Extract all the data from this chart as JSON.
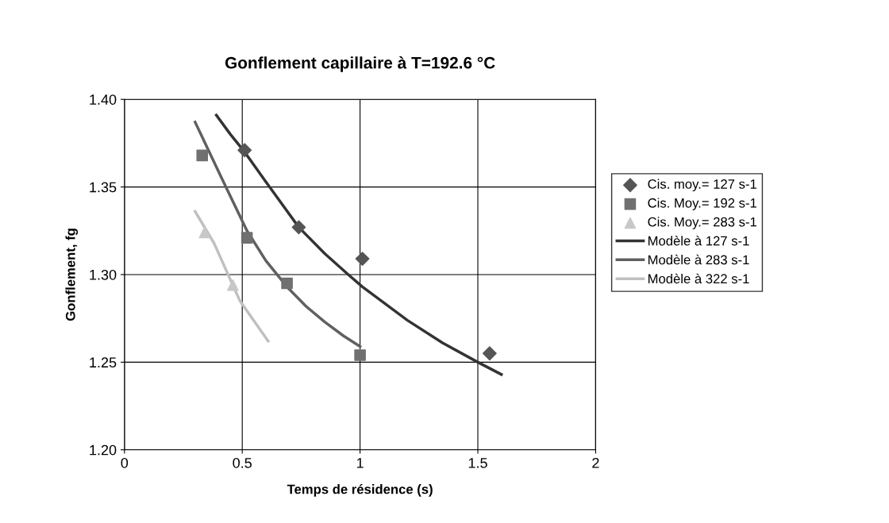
{
  "chart_data": {
    "type": "scatter",
    "title": "Gonflement capillaire à T=192.6 °C",
    "xlabel": "Temps de résidence (s)",
    "ylabel": "Gonflement, fg",
    "xlim": [
      0,
      2
    ],
    "xticks": [
      0,
      0.5,
      1,
      1.5,
      2
    ],
    "ylim": [
      1.2,
      1.4
    ],
    "yticks": [
      {
        "value": 1.2,
        "label": "1.20"
      },
      {
        "value": 1.25,
        "label": "1.25"
      },
      {
        "value": 1.3,
        "label": "1.30"
      },
      {
        "value": 1.35,
        "label": "1.35"
      },
      {
        "value": 1.4,
        "label": "1.40"
      }
    ],
    "grid": true,
    "legend": "right",
    "series": [
      {
        "name": "Cis. moy.= 127 s-1",
        "marker": "diamond",
        "color": "#555555",
        "x": [
          0.51,
          0.74,
          1.01,
          1.55
        ],
        "values": [
          1.371,
          1.327,
          1.309,
          1.255
        ]
      },
      {
        "name": "Cis. Moy.= 192 s-1",
        "marker": "square",
        "color": "#707070",
        "x": [
          0.33,
          0.52,
          0.69,
          1.0
        ],
        "values": [
          1.368,
          1.321,
          1.295,
          1.254
        ]
      },
      {
        "name": "Cis. Moy.= 283 s-1",
        "marker": "triangle",
        "color": "#c8c8c8",
        "x": [
          0.34,
          0.46
        ],
        "values": [
          1.324,
          1.294
        ]
      },
      {
        "name": "Modèle à 127 s-1",
        "type": "line",
        "color": "#333333",
        "x": [
          0.39,
          0.45,
          0.51,
          0.6,
          0.74,
          0.85,
          0.95,
          1.01,
          1.2,
          1.35,
          1.5,
          1.6
        ],
        "values": [
          1.391,
          1.38,
          1.37,
          1.353,
          1.327,
          1.312,
          1.3,
          1.293,
          1.274,
          1.261,
          1.25,
          1.243
        ]
      },
      {
        "name": "Modèle à 283 s-1",
        "type": "line",
        "color": "#606060",
        "x": [
          0.3,
          0.36,
          0.42,
          0.52,
          0.6,
          0.69,
          0.77,
          0.85,
          0.93,
          1.0
        ],
        "values": [
          1.387,
          1.37,
          1.353,
          1.325,
          1.308,
          1.293,
          1.282,
          1.273,
          1.265,
          1.259
        ]
      },
      {
        "name": "Modèle à 322 s-1",
        "type": "line",
        "color": "#c0c0c0",
        "x": [
          0.3,
          0.38,
          0.49,
          0.61
        ],
        "values": [
          1.336,
          1.318,
          1.285,
          1.262
        ]
      }
    ]
  }
}
